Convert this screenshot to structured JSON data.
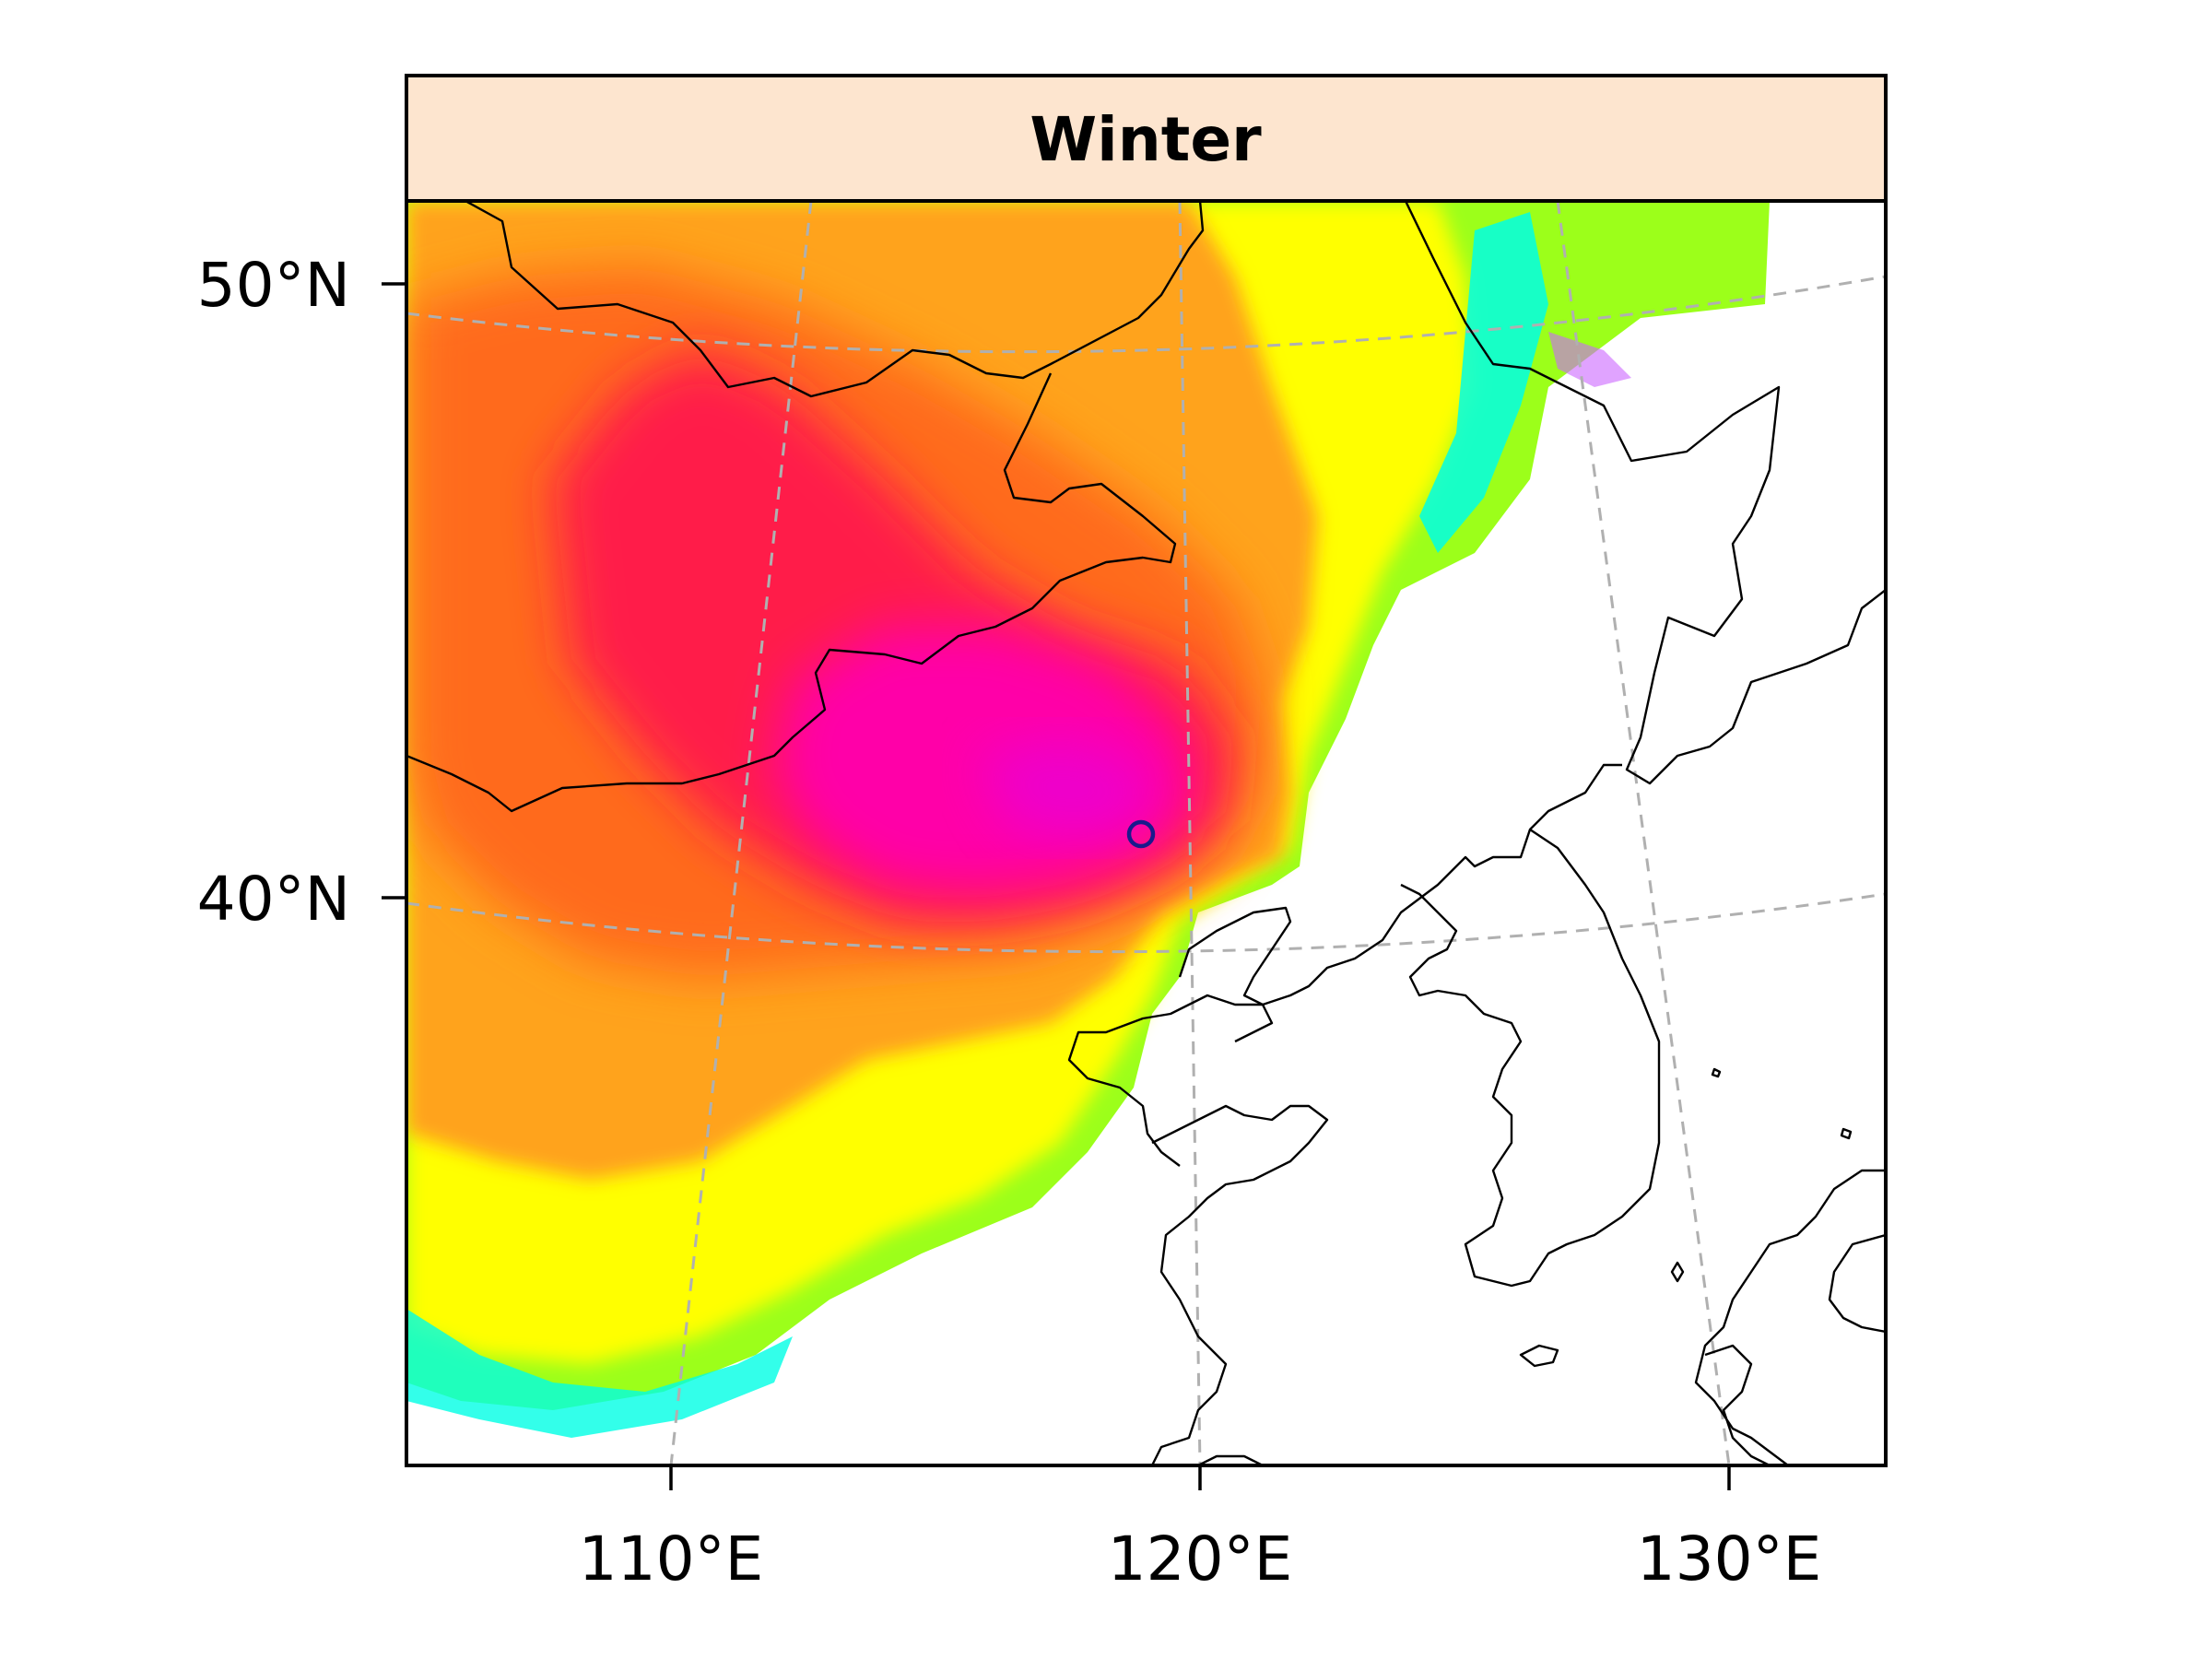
{
  "panel": {
    "title": "Winter",
    "header_color": "#fde5cf"
  },
  "axes": {
    "lat_ticks": [
      "50°N",
      "40°N"
    ],
    "lon_ticks": [
      "110°E",
      "120°E",
      "130°E"
    ]
  },
  "marker": {
    "symbol": "open circle",
    "color": "#1a1a8c"
  },
  "colormap": [
    "#ff00e0",
    "#ff1a6e",
    "#ff6a1a",
    "#ffa31a",
    "#ffff00",
    "#9cff1a",
    "#00ffe5",
    "#0000ff"
  ]
}
